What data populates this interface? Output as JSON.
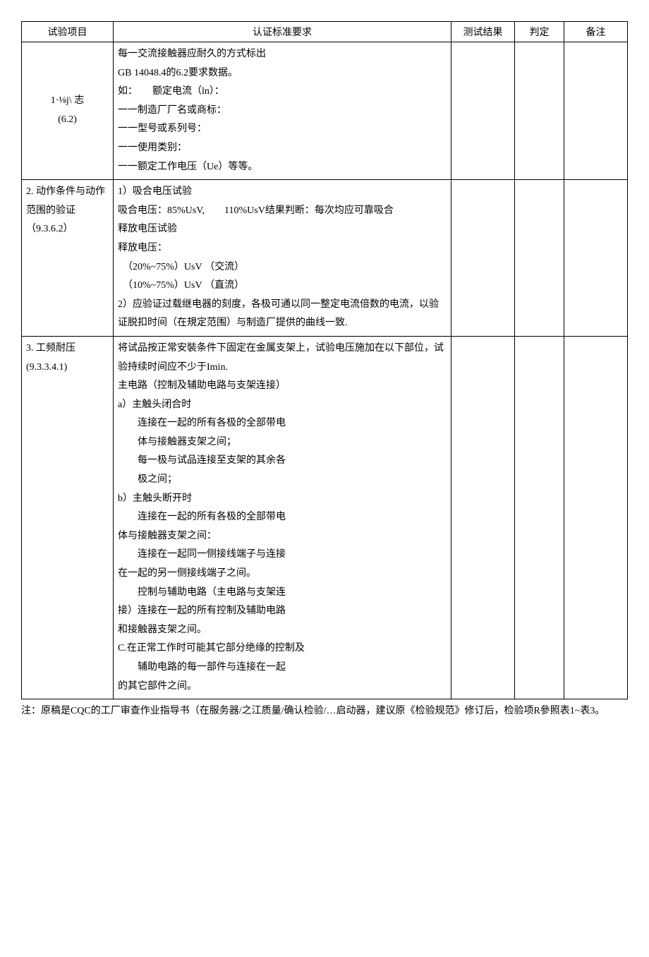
{
  "header": {
    "col_item": "试验项目",
    "col_req": "认证标准要求",
    "col_res": "测试结果",
    "col_judge": "判定",
    "col_note": "备注"
  },
  "rows": [
    {
      "item": "1·⅛j\\ 志\n(6.2)",
      "req": "每一交流接触器应耐久的方式标出\nGB 14048.4的6.2要求数据。\n如：　　额定电流（ln）：\n一一制造厂厂名或商标：\n一一型号或系列号：\n一一使用类别：\n一一额定工作电压（Ue）等等。",
      "res": "",
      "judge": "",
      "note": ""
    },
    {
      "item": "2. 动作条件与动作范围的验证\n（9.3.6.2）",
      "req": "1）吸合电压试验\n吸合电压：85%UsV,　　110%UsV结果判断：每次均应可靠吸合\n释放电压试验\n释放电压：\n　（20%~75%）UsV （交流）\n　（10%~75%）UsV （直流）\n2）应验证过载继电器的刻度，各极可通以同一整定电流倍数的电流，以验证脱扣时间（在規定范围）与制造厂提供的曲线一致.",
      "res": "",
      "judge": "",
      "note": ""
    },
    {
      "item": "3. 工频耐压\n(9.3.3.4.1)",
      "req": "将试品按正常安裝条件下固定在金属支架上，试验电压施加在以下部位，试验持续时间应不少于Imin.\n主电路（控制及辅助电路与支架连接）\na）主触头闭合时\n　　连接在一起的所有各极的全部带电\n　　体与接触器支架之间；\n　　每一极与试品连接至支架的其余各\n　　极之间；\nb）主触头断开时\n　　连接在一起的所有各极的全部带电\n体与接触器支架之间：\n　　连接在一起同一侧接线端子与连接\n在一起的另一侧接线端子之间。\n　　控制与辅助电路（主电路与支架连\n接）连接在一起的所有控制及辅助电路\n和接触器支架之间。\nC.在正常工作时可能其它部分绝缘的控制及\n　　辅助电路的每一部件与连接在一起\n的其它部件之间。",
      "res": "",
      "judge": "",
      "note": ""
    }
  ],
  "footnote": "注：原稿是CQC的工厂审查作业指导书（在服务器/之江质量/确认检验/…启动器，建议原《检验规范》修订后，检验项R參照表1~表3。"
}
